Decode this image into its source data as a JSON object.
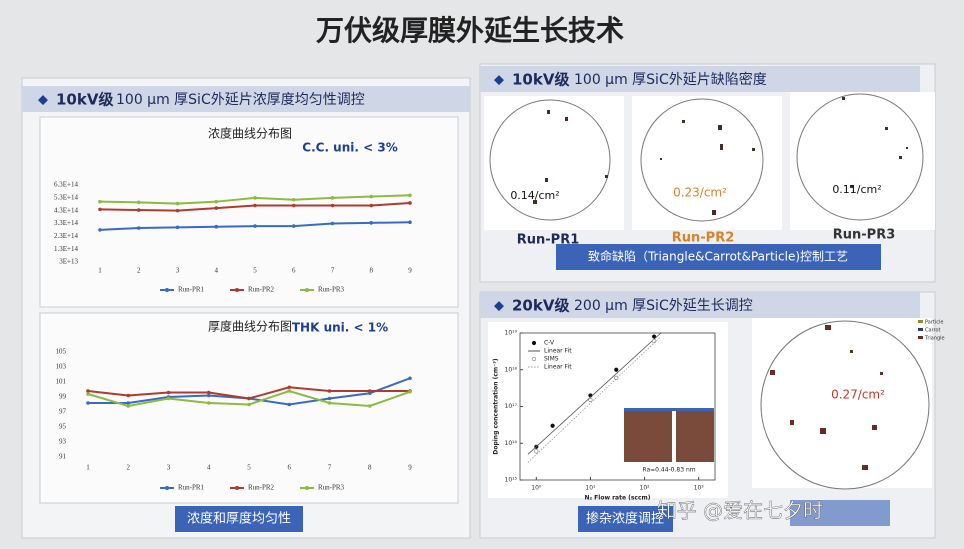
{
  "title": "万伏级厚膜外延生长技术",
  "left_panel": {
    "heading_lead": "10kV级",
    "heading": "100 μm 厚SiC外延片浓厚度均匀性调控",
    "caption": "浓度和厚度均匀性"
  },
  "defect_panel": {
    "heading_lead": "10kV级",
    "heading": "100 μm 厚SiC外延片缺陷密度",
    "wafers": [
      {
        "density": "0.14/cm²",
        "label": "Run-PR1"
      },
      {
        "density": "0.23/cm²",
        "label": "Run-PR2"
      },
      {
        "density": "0.11/cm²",
        "label": "Run-PR3"
      }
    ],
    "caption": "致命缺陷（Triangle&Carrot&Particle)控制工艺"
  },
  "growth_panel": {
    "heading_lead": "20kV级",
    "heading": "200 μm 厚SiC外延生长调控",
    "wafer": {
      "density": "0.27/cm²",
      "legend": [
        "Particle",
        "Carrot",
        "Triangle"
      ]
    },
    "caption": "掺杂浓度调控"
  },
  "watermark": "知乎 @爱在七夕时",
  "chart_data": [
    {
      "type": "line",
      "title": "浓度曲线分布图",
      "annotation": "C.C. uni. < 3%",
      "categories": [
        "1",
        "2",
        "3",
        "4",
        "5",
        "6",
        "7",
        "8",
        "9"
      ],
      "ylim": [
        30000000000000.0,
        630000000000000.0
      ],
      "yticks": [
        {
          "value": 30000000000000.0,
          "label": "3E+13"
        },
        {
          "value": 130000000000000.0,
          "label": "1.3E+14"
        },
        {
          "value": 230000000000000.0,
          "label": "2.3E+14"
        },
        {
          "value": 330000000000000.0,
          "label": "3.3E+14"
        },
        {
          "value": 430000000000000.0,
          "label": "4.3E+14"
        },
        {
          "value": 530000000000000.0,
          "label": "5.3E+14"
        },
        {
          "value": 630000000000000.0,
          "label": "6.3E+14"
        }
      ],
      "grid": false,
      "series": [
        {
          "name": "Run-PR1",
          "color": "#3a6bc4",
          "values": [
            280000000000000.0,
            295000000000000.0,
            300000000000000.0,
            305000000000000.0,
            310000000000000.0,
            310000000000000.0,
            330000000000000.0,
            335000000000000.0,
            340000000000000.0
          ]
        },
        {
          "name": "Run-PR2",
          "color": "#b03a2e",
          "values": [
            440000000000000.0,
            435000000000000.0,
            430000000000000.0,
            450000000000000.0,
            470000000000000.0,
            470000000000000.0,
            470000000000000.0,
            470000000000000.0,
            490000000000000.0
          ]
        },
        {
          "name": "Run-PR3",
          "color": "#8dbb3f",
          "values": [
            500000000000000.0,
            495000000000000.0,
            485000000000000.0,
            500000000000000.0,
            530000000000000.0,
            515000000000000.0,
            530000000000000.0,
            540000000000000.0,
            550000000000000.0
          ]
        }
      ]
    },
    {
      "type": "line",
      "title": "厚度曲线分布图",
      "annotation": "THK uni. < 1%",
      "categories": [
        "1",
        "2",
        "3",
        "4",
        "5",
        "6",
        "7",
        "8",
        "9"
      ],
      "ylim": [
        91,
        105
      ],
      "yticks": [
        91,
        93,
        95,
        97,
        99,
        101,
        103,
        105
      ],
      "grid": false,
      "series": [
        {
          "name": "Run-PR1",
          "color": "#3a6bc4",
          "values": [
            98.2,
            98.2,
            99.0,
            99.2,
            98.8,
            98.0,
            98.8,
            99.5,
            101.5
          ]
        },
        {
          "name": "Run-PR2",
          "color": "#b03a2e",
          "values": [
            99.8,
            99.2,
            99.6,
            99.6,
            98.8,
            100.3,
            99.8,
            99.8,
            99.8
          ]
        },
        {
          "name": "Run-PR3",
          "color": "#8dbb3f",
          "values": [
            99.4,
            97.8,
            98.8,
            98.2,
            98.0,
            99.8,
            98.2,
            97.8,
            99.7
          ]
        }
      ]
    },
    {
      "type": "scatter",
      "x_label": "N₂ Flow rate (sccm)",
      "y_label": "Doping concentration (cm⁻³)",
      "annotation": "Ra=0.44-0.83 nm",
      "log_x": true,
      "log_y": true,
      "xlim": [
        0.5,
        2000
      ],
      "ylim": [
        1000000000000000.0,
        1e+19
      ],
      "xticks": [
        {
          "value": 1,
          "label": "10⁰"
        },
        {
          "value": 10,
          "label": "10¹"
        },
        {
          "value": 100,
          "label": "10²"
        },
        {
          "value": 1000,
          "label": "10³"
        }
      ],
      "yticks": [
        {
          "value": 1000000000000000.0,
          "label": "10¹⁵"
        },
        {
          "value": 1e+16,
          "label": "10¹⁶"
        },
        {
          "value": 1e+17,
          "label": "10¹⁷"
        },
        {
          "value": 1e+18,
          "label": "10¹⁸"
        },
        {
          "value": 1e+19,
          "label": "10¹⁹"
        }
      ],
      "series": [
        {
          "name": "C-V",
          "style": "filled",
          "color": "#111111",
          "x": [
            1,
            2,
            10,
            30,
            150
          ],
          "values": [
            8000000000000000.0,
            3e+16,
            2e+17,
            1e+18,
            8e+18
          ]
        },
        {
          "name": "Linear Fit",
          "style": "line",
          "color": "#555555",
          "x": [
            0.7,
            200
          ],
          "values": [
            5000000000000000.0,
            1e+19
          ]
        },
        {
          "name": "SIMS",
          "style": "open",
          "color": "#777777",
          "x": [
            1,
            10,
            30,
            150
          ],
          "values": [
            6000000000000000.0,
            1.5e+17,
            6e+17,
            6e+18
          ]
        },
        {
          "name": "Linear Fit",
          "style": "dotted",
          "color": "#999999",
          "x": [
            0.7,
            200
          ],
          "values": [
            3000000000000000.0,
            8e+18
          ]
        }
      ]
    }
  ]
}
